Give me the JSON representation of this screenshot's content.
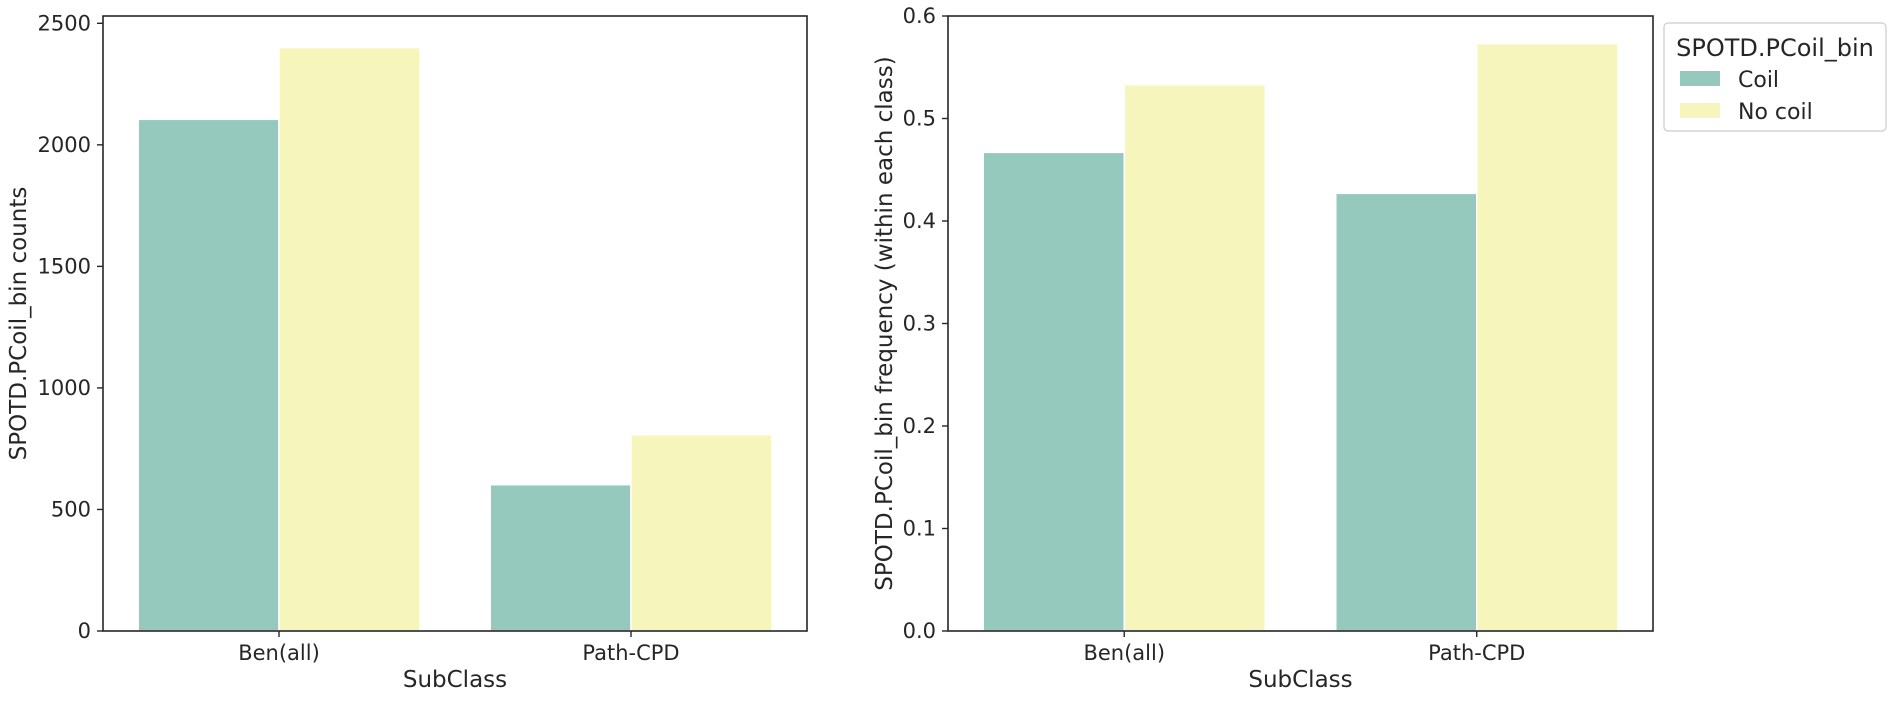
{
  "colors": {
    "coil": "#96c9be",
    "nocoil": "#f6f6bc",
    "axis": "#262626"
  },
  "legend": {
    "title": "SPOTD.PCoil_bin",
    "placement": "upper-right-outside",
    "entries": [
      {
        "label": "Coil",
        "color": "#96c9be"
      },
      {
        "label": "No coil",
        "color": "#f6f6bc"
      }
    ]
  },
  "chart_data": [
    {
      "type": "bar",
      "title": "",
      "xlabel": "SubClass",
      "ylabel": "SPOTD.PCoil_bin counts",
      "categories": [
        "Ben(all)",
        "Path-CPD"
      ],
      "ylim": [
        0,
        2530
      ],
      "yticks": [
        "0",
        "500",
        "1000",
        "1500",
        "2000",
        "2500"
      ],
      "ytick_values": [
        0,
        500,
        1000,
        1500,
        2000,
        2500
      ],
      "grid": false,
      "series": [
        {
          "name": "Coil",
          "values": [
            2105,
            602
          ]
        },
        {
          "name": "No coil",
          "values": [
            2400,
            808
          ]
        }
      ]
    },
    {
      "type": "bar",
      "title": "",
      "xlabel": "SubClass",
      "ylabel": "SPOTD.PCoil_bin frequency (within each class)",
      "categories": [
        "Ben(all)",
        "Path-CPD"
      ],
      "ylim": [
        0,
        0.6
      ],
      "yticks": [
        "0.0",
        "0.1",
        "0.2",
        "0.3",
        "0.4",
        "0.5",
        "0.6"
      ],
      "ytick_values": [
        0,
        0.1,
        0.2,
        0.3,
        0.4,
        0.5,
        0.6
      ],
      "grid": false,
      "series": [
        {
          "name": "Coil",
          "values": [
            0.467,
            0.427
          ]
        },
        {
          "name": "No coil",
          "values": [
            0.533,
            0.573
          ]
        }
      ]
    }
  ]
}
